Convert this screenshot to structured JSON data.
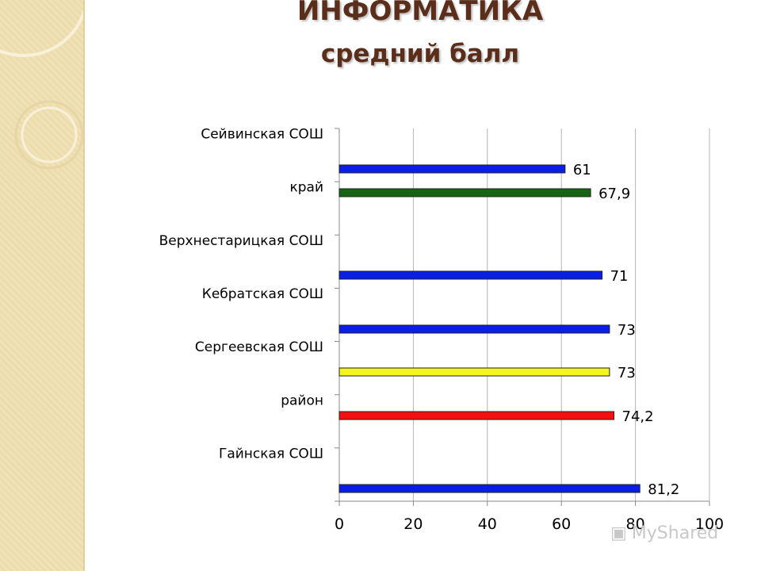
{
  "title": "ИНФОРМАТИКА",
  "subtitle": "средний балл",
  "watermark": "MyShared",
  "chart_data": {
    "type": "bar",
    "orientation": "horizontal",
    "categories": [
      "Сейвинская СОШ",
      "край",
      "Верхнестарицкая СОШ",
      "Кебратская СОШ",
      "Сергеевская СОШ",
      "район",
      "Гайнская СОШ"
    ],
    "values": [
      61,
      67.9,
      71,
      73,
      73,
      74.2,
      81.2
    ],
    "value_labels": [
      "61",
      "67,9",
      "71",
      "73",
      "73",
      "74,2",
      "81,2"
    ],
    "colors": [
      "#0b1ee6",
      "#146414",
      "#0b1ee6",
      "#0b1ee6",
      "#f5f51e",
      "#f50f0f",
      "#0b1ee6"
    ],
    "xlim": [
      0,
      100
    ],
    "xticks": [
      0,
      20,
      40,
      60,
      80,
      100
    ],
    "grid": true,
    "legend": false
  }
}
